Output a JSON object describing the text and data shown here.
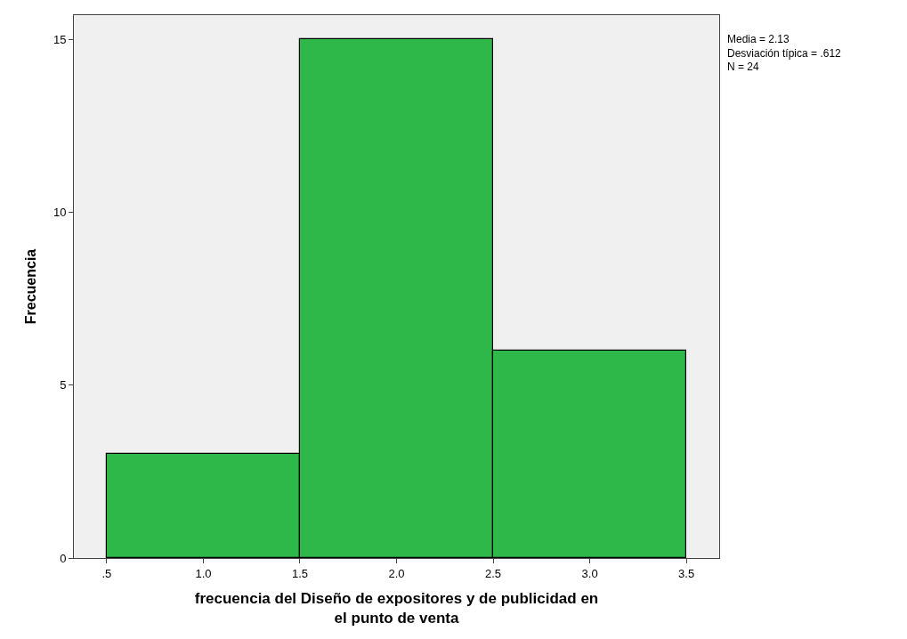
{
  "chart_data": {
    "type": "histogram",
    "xlabel": "frecuencia del Diseño de expositores y de publicidad en el punto de venta",
    "ylabel": "Frecuencia",
    "bins": [
      0.5,
      1.5,
      2.5,
      3.5
    ],
    "values": [
      3,
      15,
      6
    ],
    "color": "#2eb84a",
    "xlim": [
      0.33,
      3.67
    ],
    "ylim": [
      0,
      15.7
    ],
    "xticks": [
      {
        "value": 0.5,
        "label": ".5"
      },
      {
        "value": 1.0,
        "label": "1.0"
      },
      {
        "value": 1.5,
        "label": "1.5"
      },
      {
        "value": 2.0,
        "label": "2.0"
      },
      {
        "value": 2.5,
        "label": "2.5"
      },
      {
        "value": 3.0,
        "label": "3.0"
      },
      {
        "value": 3.5,
        "label": "3.5"
      }
    ],
    "yticks": [
      0,
      5,
      10,
      15
    ],
    "grid": false,
    "annotations": [
      "Media = 2.13\nDesviación típica = .612\nN = 24"
    ]
  }
}
